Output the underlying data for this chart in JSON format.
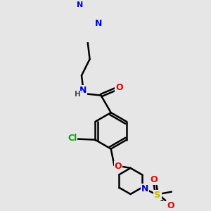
{
  "bg_color": "#e6e6e6",
  "bond_color": "#000000",
  "bond_width": 1.8,
  "atom_colors": {
    "N": "#0000ee",
    "O": "#ee0000",
    "Cl": "#00aa00",
    "S": "#ccbb00",
    "H": "#444444"
  },
  "font_size": 8.0,
  "fig_width": 3.0,
  "fig_height": 3.0
}
